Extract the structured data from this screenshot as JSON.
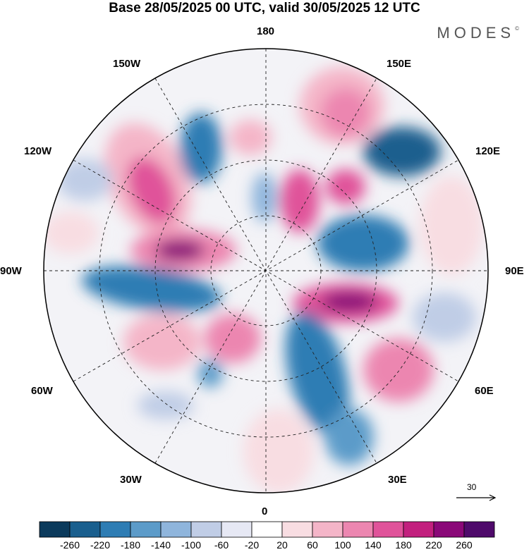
{
  "header": {
    "title": "Base 28/05/2025 00 UTC, valid 30/05/2025 12 UTC",
    "brand": "MODES",
    "brand_mark": "©"
  },
  "map": {
    "projection": "north polar stereographic",
    "longitude_labels": {
      "top": "180",
      "bottom": "0",
      "left": "90W",
      "right": "90E",
      "upper_left_1": "150W",
      "upper_left_2": "120W",
      "upper_right_1": "150E",
      "upper_right_2": "120E",
      "lower_left_1": "60W",
      "lower_left_2": "30W",
      "lower_right_1": "60E",
      "lower_right_2": "30E"
    },
    "reference_vector_label": "30"
  },
  "colorbar": {
    "ticks": [
      "-260",
      "-220",
      "-180",
      "-140",
      "-100",
      "-60",
      "-20",
      "20",
      "60",
      "100",
      "140",
      "180",
      "220",
      "260"
    ],
    "colors": [
      "#0b3a5c",
      "#1a5f8e",
      "#2e7db4",
      "#5c9bc9",
      "#8fb5dc",
      "#c0cde6",
      "#e6e8f4",
      "#ffffff",
      "#f8dde2",
      "#f4b5c8",
      "#ec86b0",
      "#e0539a",
      "#c2207e",
      "#8a0878",
      "#4f0a6b"
    ]
  }
}
